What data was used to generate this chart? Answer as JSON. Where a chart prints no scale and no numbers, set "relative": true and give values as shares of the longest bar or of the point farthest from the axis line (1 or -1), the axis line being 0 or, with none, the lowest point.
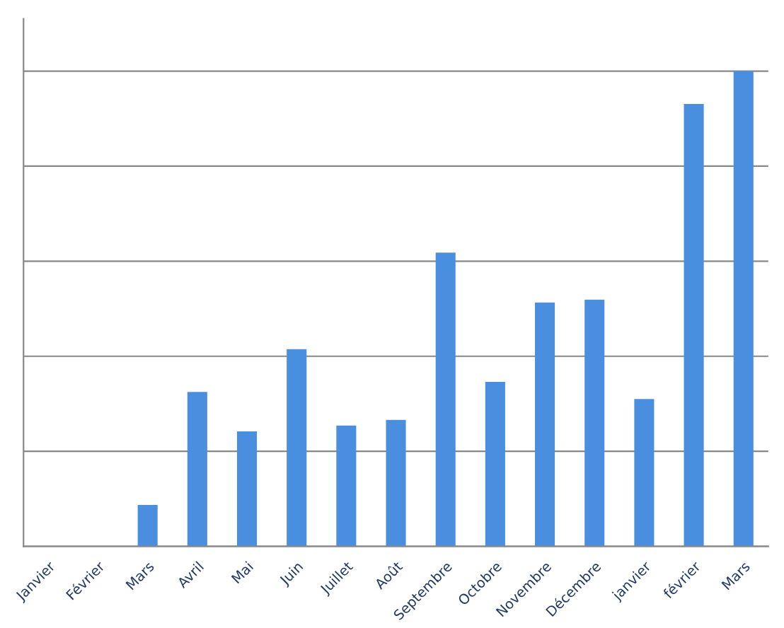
{
  "chart_data": {
    "type": "bar",
    "relative": true,
    "categories": [
      "Janvier",
      "Février",
      "Mars",
      "Avril",
      "Mai",
      "Juin",
      "Juillet",
      "Août",
      "Septembre",
      "Octobre",
      "Novembre",
      "Décembre",
      "janvier",
      "février",
      "Mars"
    ],
    "values": [
      0,
      0,
      0.087,
      0.325,
      0.242,
      0.415,
      0.254,
      0.266,
      0.618,
      0.346,
      0.513,
      0.519,
      0.31,
      0.931,
      1
    ],
    "color": "#4a8ee0",
    "grid": "y"
  }
}
